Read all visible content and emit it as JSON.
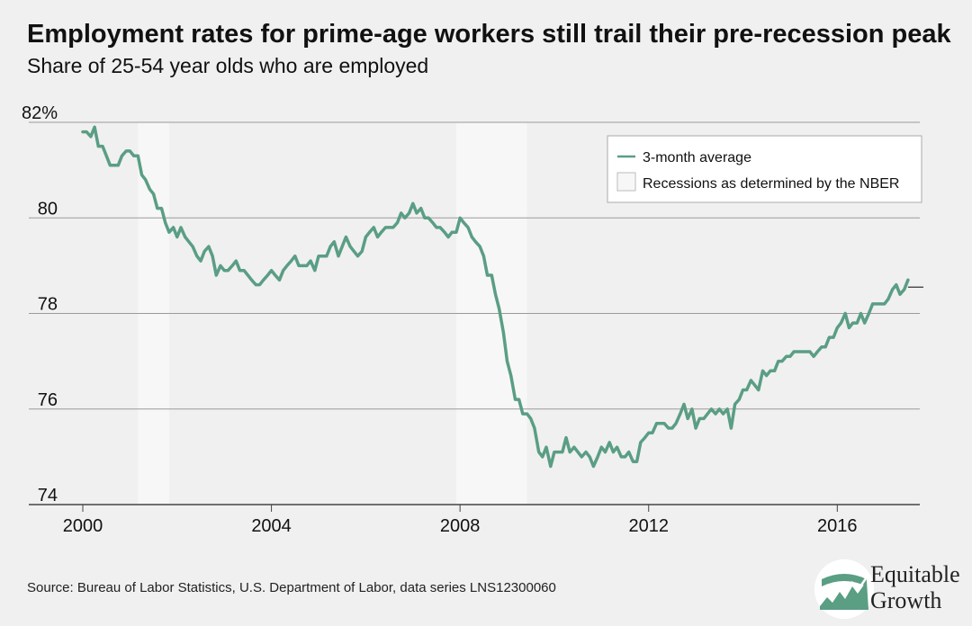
{
  "header": {
    "title": "Employment rates for prime-age workers still trail their pre-recession peak",
    "subtitle": "Share of 25-54 year olds who are employed"
  },
  "footer": {
    "source": "Source: Bureau of Labor Statistics, U.S. Department of Labor, data series LNS12300060"
  },
  "logo": {
    "line1": "Equitable",
    "line2": "Growth"
  },
  "colors": {
    "line": "#5a9e84",
    "background": "#f0f0f0",
    "recession": "#f7f7f7",
    "grid": "#9a9a9a"
  },
  "chart_data": {
    "type": "line",
    "title": "Employment rates for prime-age workers still trail their pre-recession peak",
    "subtitle": "Share of 25-54 year olds who are employed",
    "xlabel": "",
    "ylabel": "",
    "xlim": [
      2000,
      2017.75
    ],
    "ylim": [
      74,
      82
    ],
    "x_ticks": [
      2000,
      2004,
      2008,
      2012,
      2016
    ],
    "y_ticks": [
      74,
      76,
      78,
      80,
      82
    ],
    "y_tick_labels": [
      "74",
      "76",
      "78",
      "80",
      "82%"
    ],
    "grid": "horizontal",
    "legend_position": "top-right",
    "legend": [
      "3-month average",
      "Recessions as determined by the NBER"
    ],
    "recessions": [
      {
        "start": 2001.17,
        "end": 2001.83
      },
      {
        "start": 2007.92,
        "end": 2009.42
      }
    ],
    "reference_line": 78.55,
    "series": [
      {
        "name": "3-month average",
        "x": [
          2000.0,
          2000.08,
          2000.17,
          2000.25,
          2000.33,
          2000.42,
          2000.5,
          2000.58,
          2000.67,
          2000.75,
          2000.83,
          2000.92,
          2001.0,
          2001.08,
          2001.17,
          2001.25,
          2001.33,
          2001.42,
          2001.5,
          2001.58,
          2001.67,
          2001.75,
          2001.83,
          2001.92,
          2002.0,
          2002.08,
          2002.17,
          2002.25,
          2002.33,
          2002.42,
          2002.5,
          2002.58,
          2002.67,
          2002.75,
          2002.83,
          2002.92,
          2003.0,
          2003.08,
          2003.17,
          2003.25,
          2003.33,
          2003.42,
          2003.5,
          2003.58,
          2003.67,
          2003.75,
          2003.83,
          2003.92,
          2004.0,
          2004.08,
          2004.17,
          2004.25,
          2004.33,
          2004.42,
          2004.5,
          2004.58,
          2004.67,
          2004.75,
          2004.83,
          2004.92,
          2005.0,
          2005.08,
          2005.17,
          2005.25,
          2005.33,
          2005.42,
          2005.5,
          2005.58,
          2005.67,
          2005.75,
          2005.83,
          2005.92,
          2006.0,
          2006.08,
          2006.17,
          2006.25,
          2006.33,
          2006.42,
          2006.5,
          2006.58,
          2006.67,
          2006.75,
          2006.83,
          2006.92,
          2007.0,
          2007.08,
          2007.17,
          2007.25,
          2007.33,
          2007.42,
          2007.5,
          2007.58,
          2007.67,
          2007.75,
          2007.83,
          2007.92,
          2008.0,
          2008.08,
          2008.17,
          2008.25,
          2008.33,
          2008.42,
          2008.5,
          2008.58,
          2008.67,
          2008.75,
          2008.83,
          2008.92,
          2009.0,
          2009.08,
          2009.17,
          2009.25,
          2009.33,
          2009.42,
          2009.5,
          2009.58,
          2009.67,
          2009.75,
          2009.83,
          2009.92,
          2010.0,
          2010.08,
          2010.17,
          2010.25,
          2010.33,
          2010.42,
          2010.5,
          2010.58,
          2010.67,
          2010.75,
          2010.83,
          2010.92,
          2011.0,
          2011.08,
          2011.17,
          2011.25,
          2011.33,
          2011.42,
          2011.5,
          2011.58,
          2011.67,
          2011.75,
          2011.83,
          2011.92,
          2012.0,
          2012.08,
          2012.17,
          2012.25,
          2012.33,
          2012.42,
          2012.5,
          2012.58,
          2012.67,
          2012.75,
          2012.83,
          2012.92,
          2013.0,
          2013.08,
          2013.17,
          2013.25,
          2013.33,
          2013.42,
          2013.5,
          2013.58,
          2013.67,
          2013.75,
          2013.83,
          2013.92,
          2014.0,
          2014.08,
          2014.17,
          2014.25,
          2014.33,
          2014.42,
          2014.5,
          2014.58,
          2014.67,
          2014.75,
          2014.83,
          2014.92,
          2015.0,
          2015.08,
          2015.17,
          2015.25,
          2015.33,
          2015.42,
          2015.5,
          2015.58,
          2015.67,
          2015.75,
          2015.83,
          2015.92,
          2016.0,
          2016.08,
          2016.17,
          2016.25,
          2016.33,
          2016.42,
          2016.5,
          2016.58,
          2016.67,
          2016.75,
          2016.83,
          2016.92,
          2017.0,
          2017.08,
          2017.17,
          2017.25,
          2017.33,
          2017.42,
          2017.5
        ],
        "values": [
          81.8,
          81.8,
          81.7,
          81.9,
          81.5,
          81.5,
          81.3,
          81.1,
          81.1,
          81.1,
          81.3,
          81.4,
          81.4,
          81.3,
          81.3,
          80.9,
          80.8,
          80.6,
          80.5,
          80.2,
          80.2,
          79.9,
          79.7,
          79.8,
          79.6,
          79.8,
          79.6,
          79.5,
          79.4,
          79.2,
          79.1,
          79.3,
          79.4,
          79.2,
          78.8,
          79.0,
          78.9,
          78.9,
          79.0,
          79.1,
          78.9,
          78.9,
          78.8,
          78.7,
          78.6,
          78.6,
          78.7,
          78.8,
          78.9,
          78.8,
          78.7,
          78.9,
          79.0,
          79.1,
          79.2,
          79.0,
          79.0,
          79.0,
          79.1,
          78.9,
          79.2,
          79.2,
          79.2,
          79.4,
          79.5,
          79.2,
          79.4,
          79.6,
          79.4,
          79.3,
          79.2,
          79.3,
          79.6,
          79.7,
          79.8,
          79.6,
          79.7,
          79.8,
          79.8,
          79.8,
          79.9,
          80.1,
          80.0,
          80.1,
          80.3,
          80.1,
          80.2,
          80.0,
          80.0,
          79.9,
          79.8,
          79.8,
          79.7,
          79.6,
          79.7,
          79.7,
          80.0,
          79.9,
          79.8,
          79.6,
          79.5,
          79.4,
          79.2,
          78.8,
          78.8,
          78.4,
          78.1,
          77.6,
          77.0,
          76.7,
          76.2,
          76.2,
          75.9,
          75.9,
          75.8,
          75.6,
          75.1,
          75.0,
          75.2,
          74.8,
          75.1,
          75.1,
          75.1,
          75.4,
          75.1,
          75.2,
          75.1,
          75.0,
          75.1,
          75.0,
          74.8,
          75.0,
          75.2,
          75.1,
          75.3,
          75.1,
          75.2,
          75.0,
          75.0,
          75.1,
          74.9,
          74.9,
          75.3,
          75.4,
          75.5,
          75.5,
          75.7,
          75.7,
          75.7,
          75.6,
          75.6,
          75.7,
          75.9,
          76.1,
          75.8,
          76.0,
          75.6,
          75.8,
          75.8,
          75.9,
          76.0,
          75.9,
          76.0,
          75.9,
          76.0,
          75.6,
          76.1,
          76.2,
          76.4,
          76.4,
          76.6,
          76.5,
          76.4,
          76.8,
          76.7,
          76.8,
          76.8,
          77.0,
          77.0,
          77.1,
          77.1,
          77.2,
          77.2,
          77.2,
          77.2,
          77.2,
          77.1,
          77.2,
          77.3,
          77.3,
          77.5,
          77.5,
          77.7,
          77.8,
          78.0,
          77.7,
          77.8,
          77.8,
          78.0,
          77.8,
          78.0,
          78.2,
          78.2,
          78.2,
          78.2,
          78.3,
          78.5,
          78.6,
          78.4,
          78.5,
          78.7
        ]
      }
    ]
  }
}
